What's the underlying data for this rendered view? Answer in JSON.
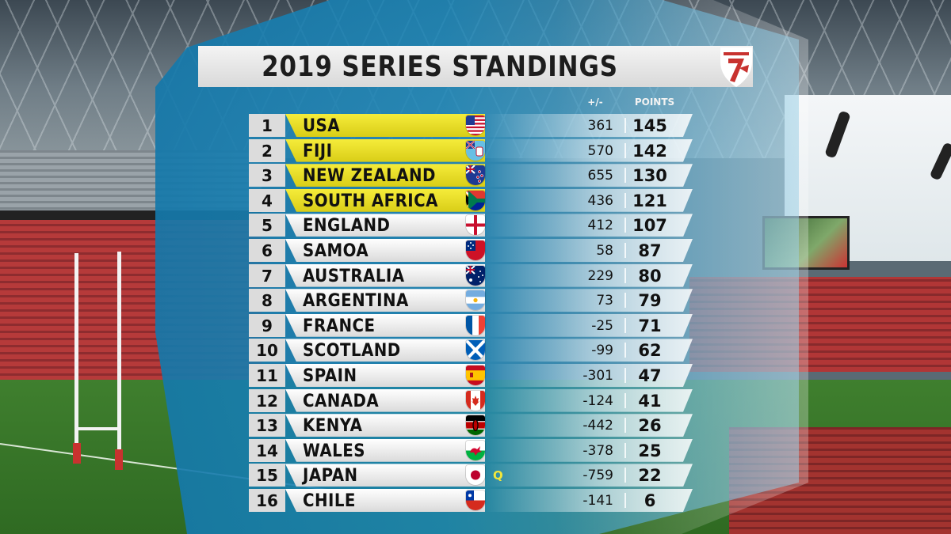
{
  "title": "2019 SERIES STANDINGS",
  "headers": {
    "diff": "+/-",
    "points": "POINTS"
  },
  "qualifier_mark": "Q",
  "colors": {
    "highlight": "#e8dd22",
    "shield": "#1a82b5",
    "row": "#e6e6e6"
  },
  "standings": [
    {
      "rank": "1",
      "team": "USA",
      "flag_icon": "usa-flag-icon",
      "diff": "361",
      "points": "145",
      "highlight": true
    },
    {
      "rank": "2",
      "team": "FIJI",
      "flag_icon": "fiji-flag-icon",
      "diff": "570",
      "points": "142",
      "highlight": true
    },
    {
      "rank": "3",
      "team": "NEW ZEALAND",
      "flag_icon": "new-zealand-flag-icon",
      "diff": "655",
      "points": "130",
      "highlight": true
    },
    {
      "rank": "4",
      "team": "SOUTH AFRICA",
      "flag_icon": "south-africa-flag-icon",
      "diff": "436",
      "points": "121",
      "highlight": true
    },
    {
      "rank": "5",
      "team": "ENGLAND",
      "flag_icon": "england-flag-icon",
      "diff": "412",
      "points": "107",
      "highlight": false
    },
    {
      "rank": "6",
      "team": "SAMOA",
      "flag_icon": "samoa-flag-icon",
      "diff": "58",
      "points": "87",
      "highlight": false
    },
    {
      "rank": "7",
      "team": "AUSTRALIA",
      "flag_icon": "australia-flag-icon",
      "diff": "229",
      "points": "80",
      "highlight": false
    },
    {
      "rank": "8",
      "team": "ARGENTINA",
      "flag_icon": "argentina-flag-icon",
      "diff": "73",
      "points": "79",
      "highlight": false
    },
    {
      "rank": "9",
      "team": "FRANCE",
      "flag_icon": "france-flag-icon",
      "diff": "-25",
      "points": "71",
      "highlight": false
    },
    {
      "rank": "10",
      "team": "SCOTLAND",
      "flag_icon": "scotland-flag-icon",
      "diff": "-99",
      "points": "62",
      "highlight": false
    },
    {
      "rank": "11",
      "team": "SPAIN",
      "flag_icon": "spain-flag-icon",
      "diff": "-301",
      "points": "47",
      "highlight": false
    },
    {
      "rank": "12",
      "team": "CANADA",
      "flag_icon": "canada-flag-icon",
      "diff": "-124",
      "points": "41",
      "highlight": false
    },
    {
      "rank": "13",
      "team": "KENYA",
      "flag_icon": "kenya-flag-icon",
      "diff": "-442",
      "points": "26",
      "highlight": false
    },
    {
      "rank": "14",
      "team": "WALES",
      "flag_icon": "wales-flag-icon",
      "diff": "-378",
      "points": "25",
      "highlight": false
    },
    {
      "rank": "15",
      "team": "JAPAN",
      "flag_icon": "japan-flag-icon",
      "diff": "-759",
      "points": "22",
      "highlight": false,
      "qualifier": true
    },
    {
      "rank": "16",
      "team": "CHILE",
      "flag_icon": "chile-flag-icon",
      "diff": "-141",
      "points": "6",
      "highlight": false
    }
  ]
}
